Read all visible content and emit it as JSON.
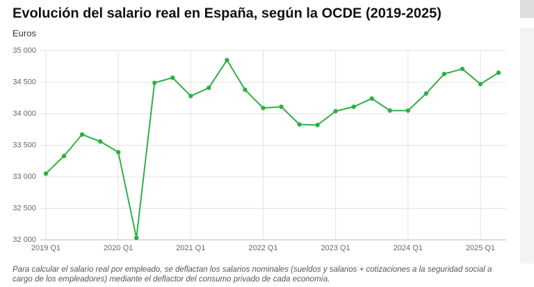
{
  "chart_data": {
    "type": "line",
    "title": "Evolución del salario real en España, según la OCDE (2019-2025)",
    "y_label": "Euros",
    "note": "Para calcular el salario real por empleado, se deflactan los salarios nominales (sueldos y salarios + cotizaciones a la seguridad social a cargo de los empleadores) mediante el deflactor del consumo privado de cada economía.",
    "categories": [
      "2019 Q1",
      null,
      null,
      null,
      "2020 Q1",
      null,
      null,
      null,
      "2021 Q1",
      null,
      null,
      null,
      "2022 Q1",
      null,
      null,
      null,
      "2023 Q1",
      null,
      null,
      null,
      "2024 Q1",
      null,
      null,
      null,
      "2025 Q1",
      null
    ],
    "series": [
      {
        "name": "Salario real",
        "color": "#2db043",
        "values": [
          33050,
          33330,
          33670,
          33560,
          33390,
          32030,
          34490,
          34570,
          34280,
          34410,
          34850,
          34380,
          34090,
          34110,
          33830,
          33820,
          34040,
          34110,
          34240,
          34050,
          34050,
          34320,
          34630,
          34710,
          34470,
          34650
        ]
      }
    ],
    "ylim": [
      32000,
      35000
    ],
    "yticks": [
      {
        "value": 32000,
        "label": "32 000"
      },
      {
        "value": 32500,
        "label": "32 500"
      },
      {
        "value": 33000,
        "label": "33 000"
      },
      {
        "value": 33500,
        "label": "33 500"
      },
      {
        "value": 34000,
        "label": "34 000"
      },
      {
        "value": 34500,
        "label": "34 500"
      },
      {
        "value": 35000,
        "label": "35 000"
      }
    ],
    "grid": true
  }
}
